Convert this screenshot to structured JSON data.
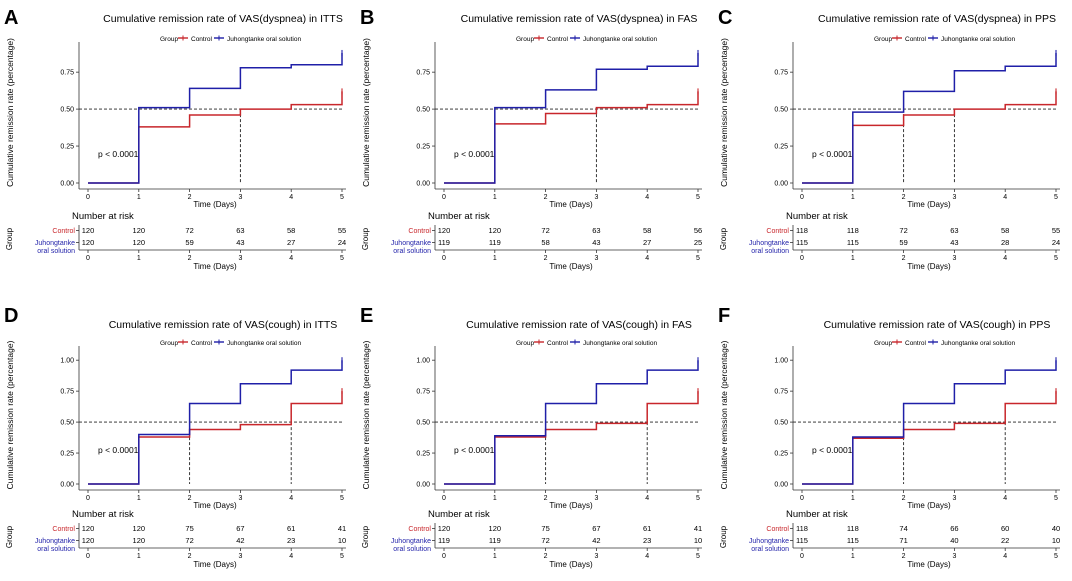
{
  "colors": {
    "control": "#c8262b",
    "juhong": "#1f1fa8",
    "axis": "#333333",
    "text": "#000000",
    "ref": "#222222"
  },
  "chart_data": [
    {
      "type": "line",
      "step": true,
      "letter": "A",
      "title": "Cumulative remission rate of VAS(dyspnea) in ITTS",
      "legend_title": "Group",
      "legend": [
        "Control",
        "Juhongtanke oral solution"
      ],
      "xlabel": "Time (Days)",
      "ylabel": "Cumulative remission rate (percentage)",
      "xlim": [
        0,
        5
      ],
      "ylim": [
        0,
        0.9
      ],
      "xticks": [
        0,
        1,
        2,
        3,
        4,
        5
      ],
      "yticks": [
        0,
        0.25,
        0.5,
        0.75
      ],
      "ytick_labels": [
        "0.00",
        "0.25",
        "0.50",
        "0.75"
      ],
      "x": [
        0,
        1,
        2,
        3,
        4,
        5
      ],
      "series": [
        {
          "name": "Control",
          "values": [
            0,
            0.38,
            0.46,
            0.5,
            0.53,
            0.62
          ]
        },
        {
          "name": "Juhongtanke oral solution",
          "values": [
            0,
            0.51,
            0.64,
            0.78,
            0.8,
            0.88
          ]
        }
      ],
      "median_line": 0.5,
      "median_x": [
        3
      ],
      "pvalue": "p < 0.0001",
      "risk_title": "Number at risk",
      "risk_ylabel": "Group",
      "risk_groups": [
        "Control",
        "Juhongtanke",
        "oral solution"
      ],
      "risk": {
        "control": [
          120,
          120,
          72,
          63,
          58,
          55
        ],
        "juhong": [
          120,
          120,
          59,
          43,
          27,
          24
        ]
      }
    },
    {
      "type": "line",
      "step": true,
      "letter": "B",
      "title": "Cumulative remission rate of VAS(dyspnea) in FAS",
      "legend_title": "Group",
      "legend": [
        "Control",
        "Juhongtanke oral solution"
      ],
      "xlabel": "Time (Days)",
      "ylabel": "Cumulative remission rate (percentage)",
      "xlim": [
        0,
        5
      ],
      "ylim": [
        0,
        0.9
      ],
      "xticks": [
        0,
        1,
        2,
        3,
        4,
        5
      ],
      "yticks": [
        0,
        0.25,
        0.5,
        0.75
      ],
      "ytick_labels": [
        "0.00",
        "0.25",
        "0.50",
        "0.75"
      ],
      "x": [
        0,
        1,
        2,
        3,
        4,
        5
      ],
      "series": [
        {
          "name": "Control",
          "values": [
            0,
            0.4,
            0.47,
            0.51,
            0.53,
            0.62
          ]
        },
        {
          "name": "Juhongtanke oral solution",
          "values": [
            0,
            0.51,
            0.63,
            0.77,
            0.79,
            0.88
          ]
        }
      ],
      "median_line": 0.5,
      "median_x": [
        3
      ],
      "pvalue": "p < 0.0001",
      "risk_title": "Number at risk",
      "risk_ylabel": "Group",
      "risk_groups": [
        "Control",
        "Juhongtanke",
        "oral solution"
      ],
      "risk": {
        "control": [
          120,
          120,
          72,
          63,
          58,
          56
        ],
        "juhong": [
          119,
          119,
          58,
          43,
          27,
          25
        ]
      }
    },
    {
      "type": "line",
      "step": true,
      "letter": "C",
      "title": "Cumulative remission rate of VAS(dyspnea) in PPS",
      "legend_title": "Group",
      "legend": [
        "Control",
        "Juhongtanke oral solution"
      ],
      "xlabel": "Time (Days)",
      "ylabel": "Cumulative remission rate (percentage)",
      "xlim": [
        0,
        5
      ],
      "ylim": [
        0,
        0.9
      ],
      "xticks": [
        0,
        1,
        2,
        3,
        4,
        5
      ],
      "yticks": [
        0,
        0.25,
        0.5,
        0.75
      ],
      "ytick_labels": [
        "0.00",
        "0.25",
        "0.50",
        "0.75"
      ],
      "x": [
        0,
        1,
        2,
        3,
        4,
        5
      ],
      "series": [
        {
          "name": "Control",
          "values": [
            0,
            0.39,
            0.46,
            0.5,
            0.53,
            0.62
          ]
        },
        {
          "name": "Juhongtanke oral solution",
          "values": [
            0,
            0.48,
            0.62,
            0.76,
            0.79,
            0.88
          ]
        }
      ],
      "median_line": 0.5,
      "median_x": [
        2,
        3
      ],
      "pvalue": "p < 0.0001",
      "risk_title": "Number at risk",
      "risk_ylabel": "Group",
      "risk_groups": [
        "Control",
        "Juhongtanke",
        "oral solution"
      ],
      "risk": {
        "control": [
          118,
          118,
          72,
          63,
          58,
          55
        ],
        "juhong": [
          115,
          115,
          59,
          43,
          28,
          24
        ]
      }
    },
    {
      "type": "line",
      "step": true,
      "letter": "D",
      "title": "Cumulative remission rate of VAS(cough) in ITTS",
      "legend_title": "Group",
      "legend": [
        "Control",
        "Juhongtanke oral solution"
      ],
      "xlabel": "Time (Days)",
      "ylabel": "Cumulative remission rate (percentage)",
      "xlim": [
        0,
        5
      ],
      "ylim": [
        0,
        1.05
      ],
      "xticks": [
        0,
        1,
        2,
        3,
        4,
        5
      ],
      "yticks": [
        0,
        0.25,
        0.5,
        0.75,
        1.0
      ],
      "ytick_labels": [
        "0.00",
        "0.25",
        "0.50",
        "0.75",
        "1.00"
      ],
      "x": [
        0,
        1,
        2,
        3,
        4,
        5
      ],
      "series": [
        {
          "name": "Control",
          "values": [
            0,
            0.38,
            0.44,
            0.48,
            0.65,
            0.75
          ]
        },
        {
          "name": "Juhongtanke oral solution",
          "values": [
            0,
            0.4,
            0.65,
            0.81,
            0.92,
            1.0
          ]
        }
      ],
      "median_line": 0.5,
      "median_x": [
        2,
        4
      ],
      "pvalue": "p < 0.0001",
      "risk_title": "Number at risk",
      "risk_ylabel": "Group",
      "risk_groups": [
        "Control",
        "Juhongtanke",
        "oral solution"
      ],
      "risk": {
        "control": [
          120,
          120,
          75,
          67,
          61,
          41
        ],
        "juhong": [
          120,
          120,
          72,
          42,
          23,
          10
        ]
      }
    },
    {
      "type": "line",
      "step": true,
      "letter": "E",
      "title": "Cumulative remission rate of VAS(cough) in FAS",
      "legend_title": "Group",
      "legend": [
        "Control",
        "Juhongtanke oral solution"
      ],
      "xlabel": "Time (Days)",
      "ylabel": "Cumulative remission rate (percentage)",
      "xlim": [
        0,
        5
      ],
      "ylim": [
        0,
        1.05
      ],
      "xticks": [
        0,
        1,
        2,
        3,
        4,
        5
      ],
      "yticks": [
        0,
        0.25,
        0.5,
        0.75,
        1.0
      ],
      "ytick_labels": [
        "0.00",
        "0.25",
        "0.50",
        "0.75",
        "1.00"
      ],
      "x": [
        0,
        1,
        2,
        3,
        4,
        5
      ],
      "series": [
        {
          "name": "Control",
          "values": [
            0,
            0.38,
            0.44,
            0.49,
            0.65,
            0.75
          ]
        },
        {
          "name": "Juhongtanke oral solution",
          "values": [
            0,
            0.39,
            0.65,
            0.81,
            0.92,
            1.0
          ]
        }
      ],
      "median_line": 0.5,
      "median_x": [
        2,
        4
      ],
      "pvalue": "p < 0.0001",
      "risk_title": "Number at risk",
      "risk_ylabel": "Group",
      "risk_groups": [
        "Control",
        "Juhongtanke",
        "oral solution"
      ],
      "risk": {
        "control": [
          120,
          120,
          75,
          67,
          61,
          41
        ],
        "juhong": [
          119,
          119,
          72,
          42,
          23,
          10
        ]
      }
    },
    {
      "type": "line",
      "step": true,
      "letter": "F",
      "title": "Cumulative remission rate of VAS(cough) in PPS",
      "legend_title": "Group",
      "legend": [
        "Control",
        "Juhongtanke oral solution"
      ],
      "xlabel": "Time (Days)",
      "ylabel": "Cumulative remission rate (percentage)",
      "xlim": [
        0,
        5
      ],
      "ylim": [
        0,
        1.05
      ],
      "xticks": [
        0,
        1,
        2,
        3,
        4,
        5
      ],
      "yticks": [
        0,
        0.25,
        0.5,
        0.75,
        1.0
      ],
      "ytick_labels": [
        "0.00",
        "0.25",
        "0.50",
        "0.75",
        "1.00"
      ],
      "x": [
        0,
        1,
        2,
        3,
        4,
        5
      ],
      "series": [
        {
          "name": "Control",
          "values": [
            0,
            0.37,
            0.44,
            0.49,
            0.65,
            0.75
          ]
        },
        {
          "name": "Juhongtanke oral solution",
          "values": [
            0,
            0.38,
            0.65,
            0.81,
            0.92,
            1.0
          ]
        }
      ],
      "median_line": 0.5,
      "median_x": [
        2,
        4
      ],
      "pvalue": "p < 0.0001",
      "risk_title": "Number at risk",
      "risk_ylabel": "Group",
      "risk_groups": [
        "Control",
        "Juhongtanke",
        "oral solution"
      ],
      "risk": {
        "control": [
          118,
          118,
          74,
          66,
          60,
          40
        ],
        "juhong": [
          115,
          115,
          71,
          40,
          22,
          10
        ]
      }
    }
  ]
}
